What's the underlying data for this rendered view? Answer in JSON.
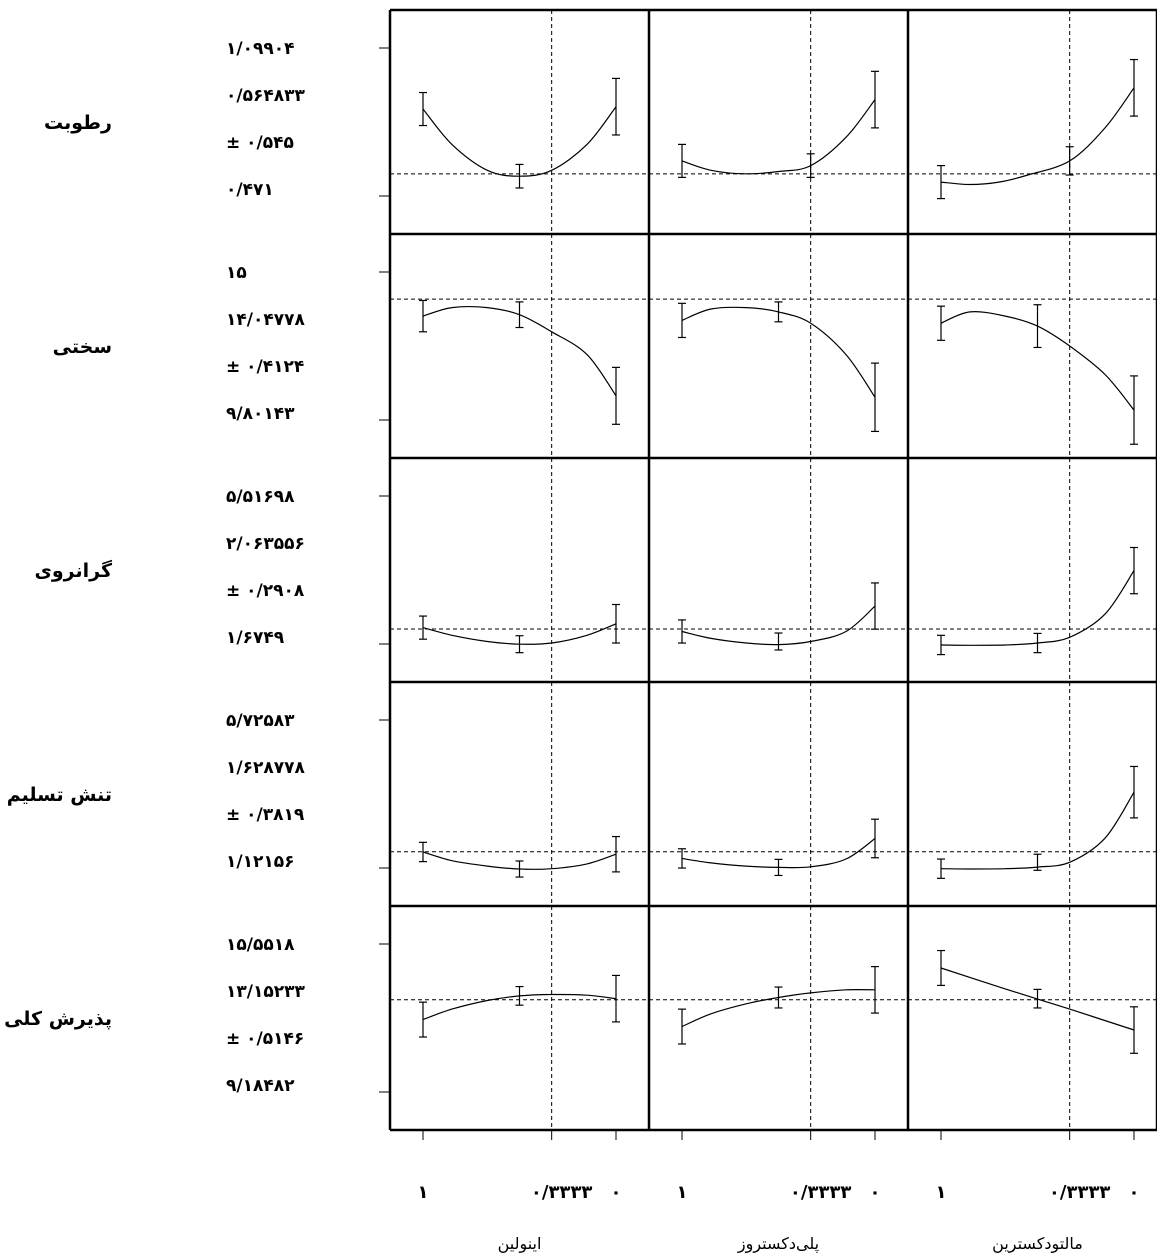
{
  "chart_data": {
    "type": "line",
    "title": "",
    "factors": [
      {
        "name": "مالتودکسترین",
        "ticks": [
          "۱",
          "۰/۳۳۳۳",
          "۰"
        ],
        "current": 0.3333
      },
      {
        "name": "پلی‌دکستروز",
        "ticks": [
          "۱",
          "۰/۳۳۳۳",
          "۰"
        ],
        "current": 0.3333
      },
      {
        "name": "اینولین",
        "ticks": [
          "۱",
          "۰/۳۳۳۳",
          "۰"
        ],
        "current": 0.3333
      }
    ],
    "responses": [
      {
        "name": "رطوبت",
        "labels": [
          "۱/۰۹۹۰۴",
          "۰/۵۶۴۸۳۳",
          "± ۰/۵۴۵",
          "۰/۴۷۱"
        ],
        "ylim": [
          0.471,
          1.09904
        ],
        "current": 0.564833,
        "panels": [
          {
            "points": [
              [
                1,
                0.53
              ],
              [
                0.85,
                0.52
              ],
              [
                0.7,
                0.53
              ],
              [
                0.55,
                0.56
              ],
              [
                0.3333,
                0.62
              ],
              [
                0.15,
                0.76
              ],
              [
                0,
                0.93
              ]
            ],
            "errors": [
              [
                1,
                0.53,
                0.07
              ],
              [
                0.3333,
                0.62,
                0.06
              ],
              [
                0,
                0.93,
                0.12
              ]
            ]
          },
          {
            "points": [
              [
                1,
                0.62
              ],
              [
                0.85,
                0.58
              ],
              [
                0.6667,
                0.565
              ],
              [
                0.5,
                0.575
              ],
              [
                0.3333,
                0.6
              ],
              [
                0.15,
                0.72
              ],
              [
                0,
                0.88
              ]
            ],
            "errors": [
              [
                1,
                0.62,
                0.07
              ],
              [
                0.3333,
                0.6,
                0.05
              ],
              [
                0,
                0.88,
                0.12
              ]
            ]
          },
          {
            "points": [
              [
                1,
                0.84
              ],
              [
                0.85,
                0.69
              ],
              [
                0.6667,
                0.58
              ],
              [
                0.5,
                0.555
              ],
              [
                0.3333,
                0.58
              ],
              [
                0.15,
                0.69
              ],
              [
                0,
                0.85
              ]
            ],
            "errors": [
              [
                1,
                0.84,
                0.07
              ],
              [
                0.5,
                0.555,
                0.05
              ],
              [
                0,
                0.85,
                0.12
              ]
            ]
          }
        ]
      },
      {
        "name": "سختی",
        "labels": [
          "۱۵",
          "۱۴/۰۴۷۷۸",
          "± ۰/۴۱۲۴",
          "۹/۸۰۱۴۳"
        ],
        "ylim": [
          9.80143,
          15
        ],
        "current": 14.04778,
        "panels": [
          {
            "points": [
              [
                1,
                13.2
              ],
              [
                0.85,
                13.6
              ],
              [
                0.6667,
                13.45
              ],
              [
                0.5,
                13.1
              ],
              [
                0.3333,
                12.4
              ],
              [
                0.15,
                11.4
              ],
              [
                0,
                10.15
              ]
            ],
            "errors": [
              [
                1,
                13.2,
                0.6
              ],
              [
                0.5,
                13.1,
                0.75
              ],
              [
                0,
                10.15,
                1.2
              ]
            ]
          },
          {
            "points": [
              [
                1,
                13.3
              ],
              [
                0.85,
                13.7
              ],
              [
                0.6667,
                13.75
              ],
              [
                0.5,
                13.6
              ],
              [
                0.3333,
                13.2
              ],
              [
                0.15,
                12.1
              ],
              [
                0,
                10.6
              ]
            ],
            "errors": [
              [
                1,
                13.3,
                0.6
              ],
              [
                0.5,
                13.6,
                0.35
              ],
              [
                0,
                10.6,
                1.2
              ]
            ]
          },
          {
            "points": [
              [
                1,
                13.45
              ],
              [
                0.85,
                13.75
              ],
              [
                0.6667,
                13.75
              ],
              [
                0.5,
                13.5
              ],
              [
                0.3333,
                12.9
              ],
              [
                0.15,
                12.1
              ],
              [
                0,
                10.65
              ]
            ],
            "errors": [
              [
                1,
                13.45,
                0.55
              ],
              [
                0.5,
                13.5,
                0.45
              ],
              [
                0,
                10.65,
                1.0
              ]
            ]
          }
        ]
      },
      {
        "name": "گرانروی",
        "labels": [
          "۵/۵۱۶۹۸",
          "۲/۰۶۳۵۵۶",
          "± ۰/۲۹۰۸",
          "۱/۶۷۴۹"
        ],
        "ylim": [
          1.6749,
          5.51698
        ],
        "current": 2.063556,
        "panels": [
          {
            "points": [
              [
                1,
                1.65
              ],
              [
                0.85,
                1.64
              ],
              [
                0.6667,
                1.65
              ],
              [
                0.5,
                1.7
              ],
              [
                0.3333,
                1.85
              ],
              [
                0.15,
                2.45
              ],
              [
                0,
                3.58
              ]
            ],
            "errors": [
              [
                1,
                1.65,
                0.25
              ],
              [
                0.5,
                1.7,
                0.25
              ],
              [
                0,
                3.58,
                0.6
              ]
            ]
          },
          {
            "points": [
              [
                1,
                2.0
              ],
              [
                0.85,
                1.82
              ],
              [
                0.6667,
                1.7
              ],
              [
                0.5,
                1.66
              ],
              [
                0.3333,
                1.74
              ],
              [
                0.15,
                2.0
              ],
              [
                0,
                2.66
              ]
            ],
            "errors": [
              [
                1,
                2.0,
                0.3
              ],
              [
                0.5,
                1.74,
                0.22
              ],
              [
                0,
                2.66,
                0.6
              ]
            ]
          },
          {
            "points": [
              [
                1,
                2.1
              ],
              [
                0.85,
                1.9
              ],
              [
                0.6667,
                1.74
              ],
              [
                0.5,
                1.67
              ],
              [
                0.3333,
                1.7
              ],
              [
                0.15,
                1.9
              ],
              [
                0,
                2.2
              ]
            ],
            "errors": [
              [
                1,
                2.1,
                0.3
              ],
              [
                0.5,
                1.67,
                0.22
              ],
              [
                0,
                2.2,
                0.5
              ]
            ]
          }
        ]
      },
      {
        "name": "تنش تسلیم",
        "labels": [
          "۵/۷۲۵۸۳",
          "۱/۶۲۸۷۷۸",
          "± ۰/۳۸۱۹",
          "۱/۱۲۱۵۶"
        ],
        "ylim": [
          1.12156,
          5.72583
        ],
        "current": 1.628778,
        "panels": [
          {
            "points": [
              [
                1,
                1.1
              ],
              [
                0.85,
                1.09
              ],
              [
                0.6667,
                1.1
              ],
              [
                0.5,
                1.15
              ],
              [
                0.3333,
                1.3
              ],
              [
                0.15,
                2.05
              ],
              [
                0,
                3.48
              ]
            ],
            "errors": [
              [
                1,
                1.1,
                0.3
              ],
              [
                0.5,
                1.3,
                0.25
              ],
              [
                0,
                3.48,
                0.8
              ]
            ]
          },
          {
            "points": [
              [
                1,
                1.42
              ],
              [
                0.85,
                1.28
              ],
              [
                0.6667,
                1.18
              ],
              [
                0.5,
                1.14
              ],
              [
                0.3333,
                1.16
              ],
              [
                0.15,
                1.4
              ],
              [
                0,
                2.04
              ]
            ],
            "errors": [
              [
                1,
                1.42,
                0.3
              ],
              [
                0.5,
                1.14,
                0.25
              ],
              [
                0,
                2.04,
                0.6
              ]
            ]
          },
          {
            "points": [
              [
                1,
                1.62
              ],
              [
                0.85,
                1.35
              ],
              [
                0.6667,
                1.18
              ],
              [
                0.5,
                1.09
              ],
              [
                0.3333,
                1.1
              ],
              [
                0.15,
                1.25
              ],
              [
                0,
                1.55
              ]
            ],
            "errors": [
              [
                1,
                1.62,
                0.3
              ],
              [
                0.5,
                1.09,
                0.25
              ],
              [
                0,
                1.55,
                0.55
              ]
            ]
          }
        ]
      },
      {
        "name": "پذیرش کلی",
        "labels": [
          "۱۵/۵۵۱۸",
          "۱۳/۱۵۲۳۳",
          "± ۰/۵۱۴۶",
          "۹/۱۸۴۸۲"
        ],
        "ylim": [
          9.18482,
          15.5518
        ],
        "current": 13.15233,
        "panels": [
          {
            "points": [
              [
                1,
                14.52
              ],
              [
                0.6667,
                13.62
              ],
              [
                0.3333,
                12.75
              ],
              [
                0,
                11.85
              ]
            ],
            "errors": [
              [
                1,
                14.52,
                0.75
              ],
              [
                0.5,
                13.2,
                0.4
              ],
              [
                0,
                11.85,
                1.0
              ]
            ]
          },
          {
            "points": [
              [
                1,
                12.0
              ],
              [
                0.85,
                12.55
              ],
              [
                0.6667,
                12.98
              ],
              [
                0.5,
                13.25
              ],
              [
                0.3333,
                13.45
              ],
              [
                0.15,
                13.58
              ],
              [
                0,
                13.58
              ]
            ],
            "errors": [
              [
                1,
                12.0,
                0.75
              ],
              [
                0.5,
                13.25,
                0.45
              ],
              [
                0,
                13.58,
                1.0
              ]
            ]
          },
          {
            "points": [
              [
                1,
                12.3
              ],
              [
                0.85,
                12.75
              ],
              [
                0.6667,
                13.12
              ],
              [
                0.5,
                13.32
              ],
              [
                0.3333,
                13.38
              ],
              [
                0.15,
                13.35
              ],
              [
                0,
                13.2
              ]
            ],
            "errors": [
              [
                1,
                12.3,
                0.75
              ],
              [
                0.5,
                13.32,
                0.4
              ],
              [
                0,
                13.2,
                1.0
              ]
            ]
          }
        ]
      }
    ]
  }
}
